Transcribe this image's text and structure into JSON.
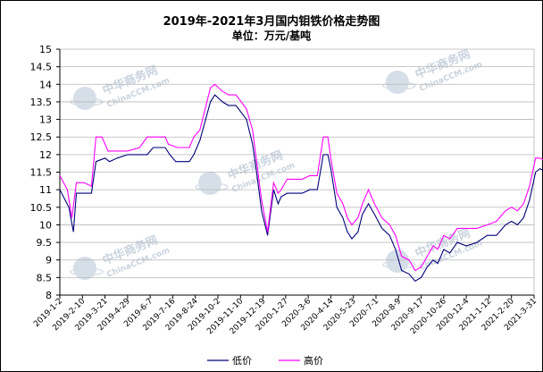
{
  "title": "2019年-2021年3月国内钼铁价格走势图",
  "subtitle": "单位：万元/基吨",
  "watermark": {
    "cn": "中华商务网",
    "en": "ChinaCCM.com"
  },
  "colors": {
    "low": "#00007a",
    "high": "#ff00ff",
    "grid": "#b8b8b8",
    "axis": "#000000",
    "watermark": "#c9d3df"
  },
  "chart_data": {
    "type": "line",
    "title": "2019年-2021年3月国内钼铁价格走势图",
    "ylabel": "万元/基吨",
    "ylim": [
      8,
      15
    ],
    "yticks": [
      "8",
      "8.5",
      "9",
      "9.5",
      "10",
      "10.5",
      "11",
      "11.5",
      "12",
      "12.5",
      "13",
      "13.5",
      "14",
      "14.5",
      "15"
    ],
    "xticks": [
      "2019-1-2",
      "2019-2-10",
      "2019-3-21",
      "2019-4-29",
      "2019-6-7",
      "2019-7-16",
      "2019-8-24",
      "2019-10-2",
      "2019-11-10",
      "2019-12-19",
      "2020-1-27",
      "2020-3-6",
      "2020-4-14",
      "2020-5-23",
      "2020-7-1",
      "2020-8-9",
      "2020-9-17",
      "2020-10-26",
      "2020-12-4",
      "2021-1-12",
      "2021-2-20",
      "2021-3-31"
    ],
    "grid": true,
    "legend_position": "bottom",
    "series": [
      {
        "name": "低价",
        "color": "#00007a",
        "points": [
          [
            0,
            11.0
          ],
          [
            6,
            10.5
          ],
          [
            9,
            9.8
          ],
          [
            11,
            10.9
          ],
          [
            16,
            10.9
          ],
          [
            21,
            10.9
          ],
          [
            24,
            11.8
          ],
          [
            30,
            11.9
          ],
          [
            33,
            11.8
          ],
          [
            38,
            11.9
          ],
          [
            45,
            12.0
          ],
          [
            58,
            12.0
          ],
          [
            62,
            12.2
          ],
          [
            70,
            12.2
          ],
          [
            73,
            12.0
          ],
          [
            77,
            11.8
          ],
          [
            86,
            11.8
          ],
          [
            89,
            12.0
          ],
          [
            93,
            12.4
          ],
          [
            100,
            13.5
          ],
          [
            103,
            13.7
          ],
          [
            108,
            13.5
          ],
          [
            112,
            13.4
          ],
          [
            117,
            13.4
          ],
          [
            124,
            13.0
          ],
          [
            128,
            12.3
          ],
          [
            131,
            11.4
          ],
          [
            134,
            10.4
          ],
          [
            138,
            9.7
          ],
          [
            142,
            11.0
          ],
          [
            145,
            10.6
          ],
          [
            147,
            10.8
          ],
          [
            151,
            10.9
          ],
          [
            161,
            10.9
          ],
          [
            166,
            11.0
          ],
          [
            171,
            11.0
          ],
          [
            175,
            12.0
          ],
          [
            178,
            12.0
          ],
          [
            180,
            11.6
          ],
          [
            184,
            10.5
          ],
          [
            188,
            10.2
          ],
          [
            191,
            9.8
          ],
          [
            194,
            9.6
          ],
          [
            198,
            9.8
          ],
          [
            201,
            10.3
          ],
          [
            205,
            10.6
          ],
          [
            209,
            10.3
          ],
          [
            214,
            9.9
          ],
          [
            219,
            9.7
          ],
          [
            223,
            9.3
          ],
          [
            227,
            8.7
          ],
          [
            232,
            8.6
          ],
          [
            236,
            8.4
          ],
          [
            240,
            8.5
          ],
          [
            244,
            8.8
          ],
          [
            248,
            9.0
          ],
          [
            251,
            8.9
          ],
          [
            255,
            9.3
          ],
          [
            259,
            9.2
          ],
          [
            264,
            9.5
          ],
          [
            270,
            9.4
          ],
          [
            277,
            9.5
          ],
          [
            284,
            9.7
          ],
          [
            290,
            9.7
          ],
          [
            296,
            10.0
          ],
          [
            300,
            10.1
          ],
          [
            304,
            10.0
          ],
          [
            308,
            10.2
          ],
          [
            312,
            10.7
          ],
          [
            316,
            11.5
          ],
          [
            319,
            11.6
          ],
          [
            323,
            11.5
          ],
          [
            325,
            11.3
          ],
          [
            328,
            11.0
          ]
        ]
      },
      {
        "name": "高价",
        "color": "#ff00ff",
        "points": [
          [
            0,
            11.4
          ],
          [
            5,
            11.0
          ],
          [
            8,
            10.2
          ],
          [
            11,
            11.2
          ],
          [
            16,
            11.2
          ],
          [
            21,
            11.1
          ],
          [
            24,
            12.5
          ],
          [
            28,
            12.5
          ],
          [
            32,
            12.1
          ],
          [
            38,
            12.1
          ],
          [
            45,
            12.1
          ],
          [
            53,
            12.2
          ],
          [
            58,
            12.5
          ],
          [
            70,
            12.5
          ],
          [
            72,
            12.3
          ],
          [
            78,
            12.2
          ],
          [
            86,
            12.2
          ],
          [
            89,
            12.5
          ],
          [
            93,
            12.7
          ],
          [
            100,
            13.9
          ],
          [
            103,
            14.0
          ],
          [
            108,
            13.8
          ],
          [
            112,
            13.7
          ],
          [
            117,
            13.7
          ],
          [
            124,
            13.3
          ],
          [
            128,
            12.7
          ],
          [
            131,
            11.7
          ],
          [
            134,
            10.7
          ],
          [
            138,
            9.8
          ],
          [
            142,
            11.2
          ],
          [
            145,
            10.9
          ],
          [
            147,
            11.0
          ],
          [
            151,
            11.3
          ],
          [
            161,
            11.3
          ],
          [
            166,
            11.4
          ],
          [
            171,
            11.4
          ],
          [
            175,
            12.5
          ],
          [
            178,
            12.5
          ],
          [
            180,
            11.9
          ],
          [
            184,
            10.9
          ],
          [
            188,
            10.6
          ],
          [
            191,
            10.2
          ],
          [
            194,
            10.0
          ],
          [
            198,
            10.2
          ],
          [
            201,
            10.6
          ],
          [
            205,
            11.0
          ],
          [
            209,
            10.6
          ],
          [
            214,
            10.2
          ],
          [
            219,
            10.0
          ],
          [
            223,
            9.7
          ],
          [
            227,
            9.1
          ],
          [
            232,
            9.0
          ],
          [
            236,
            8.7
          ],
          [
            240,
            8.8
          ],
          [
            244,
            9.1
          ],
          [
            248,
            9.4
          ],
          [
            251,
            9.3
          ],
          [
            255,
            9.7
          ],
          [
            259,
            9.6
          ],
          [
            264,
            9.9
          ],
          [
            270,
            9.9
          ],
          [
            277,
            9.9
          ],
          [
            284,
            10.0
          ],
          [
            290,
            10.1
          ],
          [
            296,
            10.4
          ],
          [
            300,
            10.5
          ],
          [
            304,
            10.4
          ],
          [
            308,
            10.6
          ],
          [
            312,
            11.1
          ],
          [
            316,
            11.9
          ],
          [
            319,
            11.9
          ],
          [
            323,
            11.8
          ],
          [
            325,
            11.6
          ],
          [
            328,
            11.3
          ]
        ]
      }
    ]
  }
}
